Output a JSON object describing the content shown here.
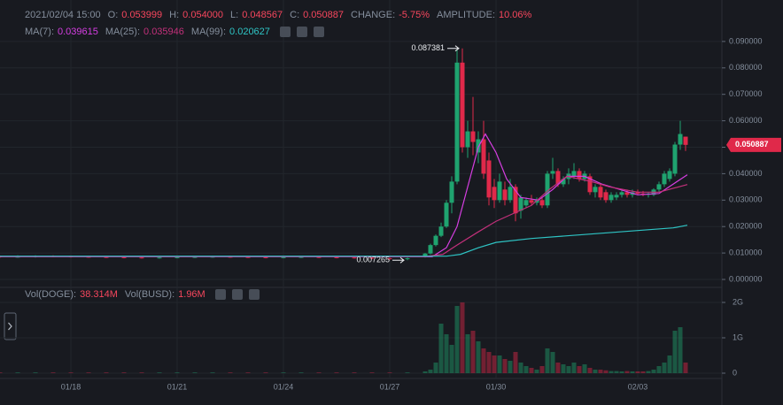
{
  "chart_data": {
    "type": "candlestick",
    "time": "2021/02/04 15:00",
    "info": [
      {
        "label": "O:",
        "value": "0.053999"
      },
      {
        "label": "H:",
        "value": "0.054000"
      },
      {
        "label": "L:",
        "value": "0.048567"
      },
      {
        "label": "C:",
        "value": "0.050887"
      },
      {
        "label": "CHANGE:",
        "value": "-5.75%"
      },
      {
        "label": "AMPLITUDE:",
        "value": "10.06%"
      }
    ],
    "up_color": "#1fa36f",
    "down_color": "#e0294a",
    "x": [
      16,
      16.5,
      17,
      17.5,
      18,
      18.5,
      19,
      19.5,
      20,
      20.5,
      21,
      21.5,
      22,
      22.5,
      23,
      23.5,
      24,
      24.5,
      25,
      25.5,
      26,
      26.5,
      27,
      27.5,
      28,
      28.15,
      28.3,
      28.45,
      28.6,
      28.75,
      28.9,
      29.05,
      29.2,
      29.35,
      29.5,
      29.65,
      29.8,
      29.95,
      30.1,
      30.25,
      30.4,
      30.55,
      30.7,
      30.85,
      31,
      31.15,
      31.3,
      31.45,
      31.6,
      31.75,
      31.9,
      32.05,
      32.2,
      32.35,
      32.5,
      32.65,
      32.8,
      32.95,
      33.1,
      33.25,
      33.4,
      33.55,
      33.7,
      33.85,
      34,
      34.15,
      34.3,
      34.45,
      34.6,
      34.75,
      34.9,
      35.05,
      35.2,
      35.35
    ],
    "open": [
      0.0087,
      0.0085,
      0.0086,
      0.0088,
      0.0087,
      0.0086,
      0.0085,
      0.0084,
      0.0083,
      0.0082,
      0.0083,
      0.0084,
      0.0085,
      0.0086,
      0.0085,
      0.0084,
      0.0083,
      0.0084,
      0.0085,
      0.0084,
      0.0083,
      0.0082,
      0.008,
      0.0078,
      0.0085,
      0.0098,
      0.013,
      0.0165,
      0.02,
      0.029,
      0.037,
      0.082,
      0.05,
      0.056,
      0.048,
      0.053,
      0.045,
      0.035,
      0.03,
      0.034,
      0.03,
      0.035,
      0.026,
      0.028,
      0.03,
      0.029,
      0.03,
      0.028,
      0.04,
      0.041,
      0.036,
      0.038,
      0.039,
      0.041,
      0.038,
      0.039,
      0.033,
      0.035,
      0.033,
      0.03,
      0.031,
      0.032,
      0.033,
      0.032,
      0.033,
      0.0325,
      0.032,
      0.032,
      0.034,
      0.036,
      0.038,
      0.04,
      0.051,
      0.053999
    ],
    "high": [
      0.009,
      0.0091,
      0.0091,
      0.0091,
      0.009,
      0.0089,
      0.0088,
      0.0087,
      0.0086,
      0.0086,
      0.0087,
      0.0088,
      0.0089,
      0.0089,
      0.0088,
      0.0087,
      0.0087,
      0.0088,
      0.0088,
      0.0087,
      0.0086,
      0.0085,
      0.0083,
      0.0083,
      0.01,
      0.0135,
      0.017,
      0.0215,
      0.03,
      0.039,
      0.087,
      0.087381,
      0.06,
      0.069,
      0.056,
      0.06,
      0.048,
      0.038,
      0.04,
      0.037,
      0.038,
      0.036,
      0.032,
      0.031,
      0.032,
      0.031,
      0.031,
      0.041,
      0.046,
      0.042,
      0.039,
      0.042,
      0.044,
      0.042,
      0.041,
      0.04,
      0.036,
      0.036,
      0.034,
      0.033,
      0.033,
      0.034,
      0.034,
      0.034,
      0.034,
      0.0335,
      0.033,
      0.0345,
      0.037,
      0.041,
      0.042,
      0.052,
      0.06,
      0.054
    ],
    "low": [
      0.0082,
      0.0082,
      0.0083,
      0.0084,
      0.0083,
      0.0082,
      0.0081,
      0.008,
      0.0079,
      0.0079,
      0.008,
      0.0081,
      0.0082,
      0.0082,
      0.0081,
      0.008,
      0.008,
      0.0081,
      0.0081,
      0.008,
      0.0079,
      0.0077,
      0.0075,
      0.007265,
      0.0083,
      0.0095,
      0.0125,
      0.016,
      0.0195,
      0.025,
      0.036,
      0.048,
      0.046,
      0.047,
      0.044,
      0.038,
      0.028,
      0.027,
      0.029,
      0.028,
      0.029,
      0.022,
      0.023,
      0.027,
      0.028,
      0.028,
      0.027,
      0.027,
      0.038,
      0.035,
      0.035,
      0.036,
      0.038,
      0.037,
      0.037,
      0.032,
      0.031,
      0.03,
      0.029,
      0.029,
      0.03,
      0.031,
      0.031,
      0.031,
      0.032,
      0.0315,
      0.031,
      0.0315,
      0.033,
      0.035,
      0.037,
      0.039,
      0.049,
      0.048567
    ],
    "close": [
      0.0085,
      0.0086,
      0.0088,
      0.0087,
      0.0086,
      0.0085,
      0.0084,
      0.0083,
      0.0082,
      0.0083,
      0.0084,
      0.0085,
      0.0086,
      0.0085,
      0.0084,
      0.0083,
      0.0084,
      0.0085,
      0.0084,
      0.0083,
      0.0082,
      0.008,
      0.0078,
      0.008,
      0.0098,
      0.013,
      0.0165,
      0.02,
      0.029,
      0.037,
      0.082,
      0.05,
      0.056,
      0.052,
      0.053,
      0.04,
      0.031,
      0.03,
      0.037,
      0.03,
      0.035,
      0.025,
      0.031,
      0.03,
      0.029,
      0.03,
      0.028,
      0.04,
      0.041,
      0.036,
      0.038,
      0.04,
      0.041,
      0.038,
      0.04,
      0.033,
      0.035,
      0.031,
      0.03,
      0.032,
      0.032,
      0.033,
      0.032,
      0.033,
      0.0325,
      0.032,
      0.0325,
      0.034,
      0.036,
      0.04,
      0.041,
      0.051,
      0.055,
      0.050887
    ],
    "ma": [
      {
        "name": "MA(7):",
        "last": "0.039615",
        "color": "#d63ee2",
        "x": [
          16,
          28.2,
          28.6,
          28.9,
          29.2,
          29.5,
          29.7,
          30,
          30.3,
          30.7,
          31.2,
          31.6,
          32,
          32.5,
          33,
          33.5,
          34,
          34.6,
          35.4
        ],
        "values": [
          0.0086,
          0.0086,
          0.012,
          0.02,
          0.035,
          0.05,
          0.055,
          0.048,
          0.038,
          0.031,
          0.03,
          0.034,
          0.039,
          0.039,
          0.036,
          0.034,
          0.032,
          0.0325,
          0.0396
        ]
      },
      {
        "name": "MA(25):",
        "last": "0.035946",
        "color": "#c2307a",
        "x": [
          16,
          28,
          28.5,
          28.9,
          29.5,
          30,
          30.5,
          31,
          31.5,
          32,
          32.7,
          33.2,
          34,
          34.6,
          35.4
        ],
        "values": [
          0.0087,
          0.0087,
          0.0095,
          0.013,
          0.018,
          0.022,
          0.025,
          0.028,
          0.034,
          0.039,
          0.037,
          0.035,
          0.033,
          0.033,
          0.0359
        ]
      },
      {
        "name": "MA(99):",
        "last": "0.020627",
        "color": "#2ec4c4",
        "x": [
          16,
          28.6,
          29,
          29.5,
          30,
          31,
          32,
          33,
          34,
          35,
          35.4
        ],
        "values": [
          0.0088,
          0.0088,
          0.0095,
          0.012,
          0.014,
          0.0155,
          0.0165,
          0.0175,
          0.0185,
          0.0195,
          0.0205
        ]
      }
    ],
    "xlim": [
      16,
      36.375
    ],
    "xticks": [
      {
        "value": 18,
        "label": "01/18"
      },
      {
        "value": 21,
        "label": "01/21"
      },
      {
        "value": 24,
        "label": "01/24"
      },
      {
        "value": 27,
        "label": "01/27"
      },
      {
        "value": 30,
        "label": "01/30"
      },
      {
        "value": 34,
        "label": "02/03"
      }
    ],
    "ylim": [
      -0.002,
      0.103
    ],
    "yticks": [
      {
        "value": 0,
        "label": "0.000000"
      },
      {
        "value": 0.01,
        "label": "0.010000"
      },
      {
        "value": 0.02,
        "label": "0.020000"
      },
      {
        "value": 0.03,
        "label": "0.030000"
      },
      {
        "value": 0.04,
        "label": "0.040000"
      },
      {
        "value": 0.05,
        "label": "0.050000"
      },
      {
        "value": 0.06,
        "label": "0.060000"
      },
      {
        "value": 0.07,
        "label": "0.070000"
      },
      {
        "value": 0.08,
        "label": "0.080000"
      },
      {
        "value": 0.09,
        "label": "0.090000"
      }
    ],
    "volume": {
      "legend": [
        {
          "label": "Vol(DOGE):",
          "value": "38.314M"
        },
        {
          "label": "Vol(BUSD):",
          "value": "1.96M"
        }
      ],
      "values": [
        0.02,
        0.02,
        0.02,
        0.02,
        0.02,
        0.02,
        0.02,
        0.02,
        0.02,
        0.02,
        0.02,
        0.02,
        0.02,
        0.02,
        0.02,
        0.02,
        0.02,
        0.02,
        0.02,
        0.02,
        0.02,
        0.02,
        0.02,
        0.02,
        0.05,
        0.1,
        0.3,
        1.4,
        1.1,
        0.8,
        1.9,
        2.0,
        1.1,
        1.2,
        0.9,
        0.7,
        0.6,
        0.5,
        0.5,
        0.4,
        0.35,
        0.6,
        0.3,
        0.2,
        0.15,
        0.1,
        0.2,
        0.7,
        0.6,
        0.3,
        0.25,
        0.2,
        0.3,
        0.2,
        0.25,
        0.15,
        0.1,
        0.1,
        0.08,
        0.06,
        0.06,
        0.05,
        0.06,
        0.05,
        0.05,
        0.05,
        0.06,
        0.1,
        0.2,
        0.3,
        0.5,
        1.2,
        1.3,
        0.3
      ],
      "ylim": [
        -0.15,
        2.4
      ],
      "yticks": [
        0,
        {
          "value": 1,
          "label": "1G"
        },
        {
          "value": 2,
          "label": "2G"
        }
      ]
    }
  }
}
